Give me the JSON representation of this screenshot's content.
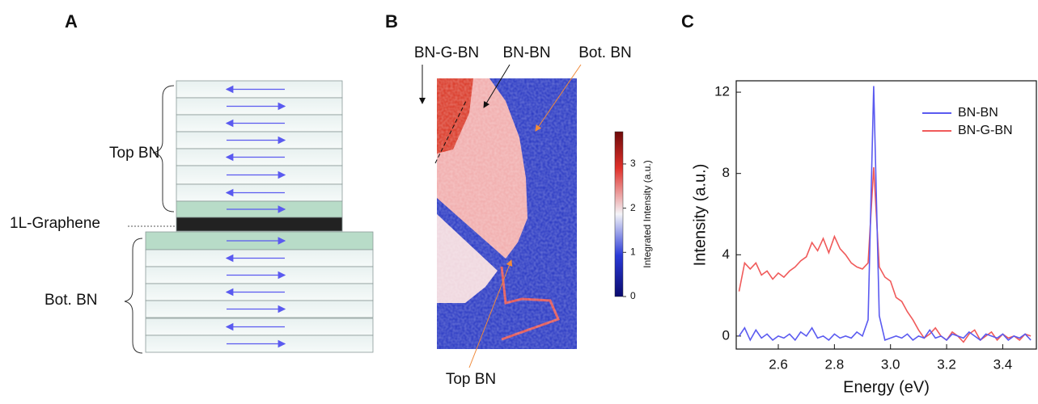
{
  "panels": [
    "A",
    "B",
    "C"
  ],
  "diagram": {
    "top_label": "Top BN",
    "graphene_label": "1L-Graphene",
    "bottom_label": "Bot. BN"
  },
  "map": {
    "labels": [
      "BN-G-BN",
      "BN-BN",
      "Bot. BN",
      "Top BN"
    ],
    "colorbar_label": "Integrated Intensity (a.u.)",
    "colorbar_lim": [
      0,
      3.73
    ],
    "colorbar_ticks": [
      0,
      1,
      2,
      3
    ]
  },
  "chart_data": {
    "type": "line",
    "xlabel": "Energy (eV)",
    "ylabel": "Intensity (a.u.)",
    "xlim": [
      2.45,
      3.52
    ],
    "xticks": [
      2.6,
      2.8,
      {
        "value": 3,
        "label": "3.0"
      },
      3.2,
      3.4
    ],
    "ylim": [
      -0.64,
      12.56
    ],
    "yticks": [
      0,
      4,
      8,
      12
    ],
    "legend": "upper right",
    "x": [
      2.46,
      2.48,
      2.5,
      2.52,
      2.54,
      2.56,
      2.58,
      2.6,
      2.62,
      2.64,
      2.66,
      2.68,
      2.7,
      2.72,
      2.74,
      2.76,
      2.78,
      2.8,
      2.82,
      2.84,
      2.86,
      2.88,
      2.9,
      2.92,
      2.94,
      2.96,
      2.98,
      3.0,
      3.02,
      3.04,
      3.06,
      3.08,
      3.1,
      3.12,
      3.14,
      3.16,
      3.18,
      3.2,
      3.22,
      3.24,
      3.26,
      3.28,
      3.3,
      3.32,
      3.34,
      3.36,
      3.38,
      3.4,
      3.42,
      3.44,
      3.46,
      3.48,
      3.5
    ],
    "series": [
      {
        "name": "BN-BN",
        "color": "#5a5af0",
        "values": [
          0.0,
          0.4,
          -0.2,
          0.3,
          -0.1,
          0.1,
          -0.2,
          0.0,
          -0.1,
          0.1,
          -0.2,
          0.2,
          0.0,
          0.4,
          -0.1,
          0.0,
          -0.2,
          0.1,
          -0.1,
          0.0,
          -0.1,
          0.2,
          0.0,
          0.8,
          12.3,
          1.0,
          -0.2,
          -0.1,
          0.0,
          -0.1,
          0.1,
          -0.2,
          0.0,
          -0.1,
          0.3,
          -0.1,
          0.0,
          -0.2,
          0.1,
          0.0,
          -0.1,
          0.2,
          0.0,
          -0.2,
          0.1,
          0.0,
          -0.1,
          0.1,
          -0.2,
          0.0,
          -0.1,
          0.1,
          -0.2
        ]
      },
      {
        "name": "BN-G-BN",
        "color": "#f05a5a",
        "values": [
          2.2,
          3.6,
          3.3,
          3.6,
          3.0,
          3.2,
          2.8,
          3.1,
          2.9,
          3.2,
          3.4,
          3.7,
          3.9,
          4.6,
          4.2,
          4.8,
          4.1,
          4.9,
          4.3,
          4.0,
          3.6,
          3.4,
          3.3,
          3.6,
          8.3,
          3.4,
          2.9,
          2.7,
          1.9,
          1.7,
          1.2,
          0.8,
          0.3,
          -0.1,
          0.1,
          0.4,
          0.0,
          -0.2,
          0.2,
          0.0,
          -0.3,
          0.1,
          0.3,
          -0.2,
          0.0,
          0.2,
          -0.2,
          0.1,
          -0.1,
          0.0,
          -0.2,
          0.1,
          0.0
        ]
      }
    ]
  }
}
